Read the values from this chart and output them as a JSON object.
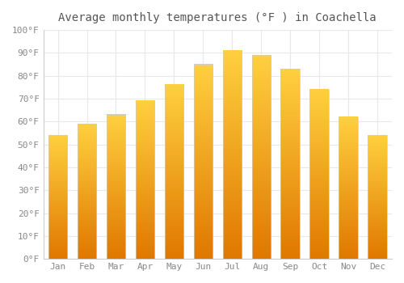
{
  "title": "Average monthly temperatures (°F ) in Coachella",
  "months": [
    "Jan",
    "Feb",
    "Mar",
    "Apr",
    "May",
    "Jun",
    "Jul",
    "Aug",
    "Sep",
    "Oct",
    "Nov",
    "Dec"
  ],
  "values": [
    54,
    59,
    63,
    69,
    76,
    85,
    91,
    89,
    83,
    74,
    62,
    54
  ],
  "bar_color_bottom": "#E07800",
  "bar_color_top": "#FFD040",
  "ylim": [
    0,
    100
  ],
  "ytick_step": 10,
  "background_color": "#ffffff",
  "grid_color": "#e8e8e8",
  "title_fontsize": 10,
  "tick_fontsize": 8,
  "tick_color": "#888888",
  "bar_width": 0.65
}
